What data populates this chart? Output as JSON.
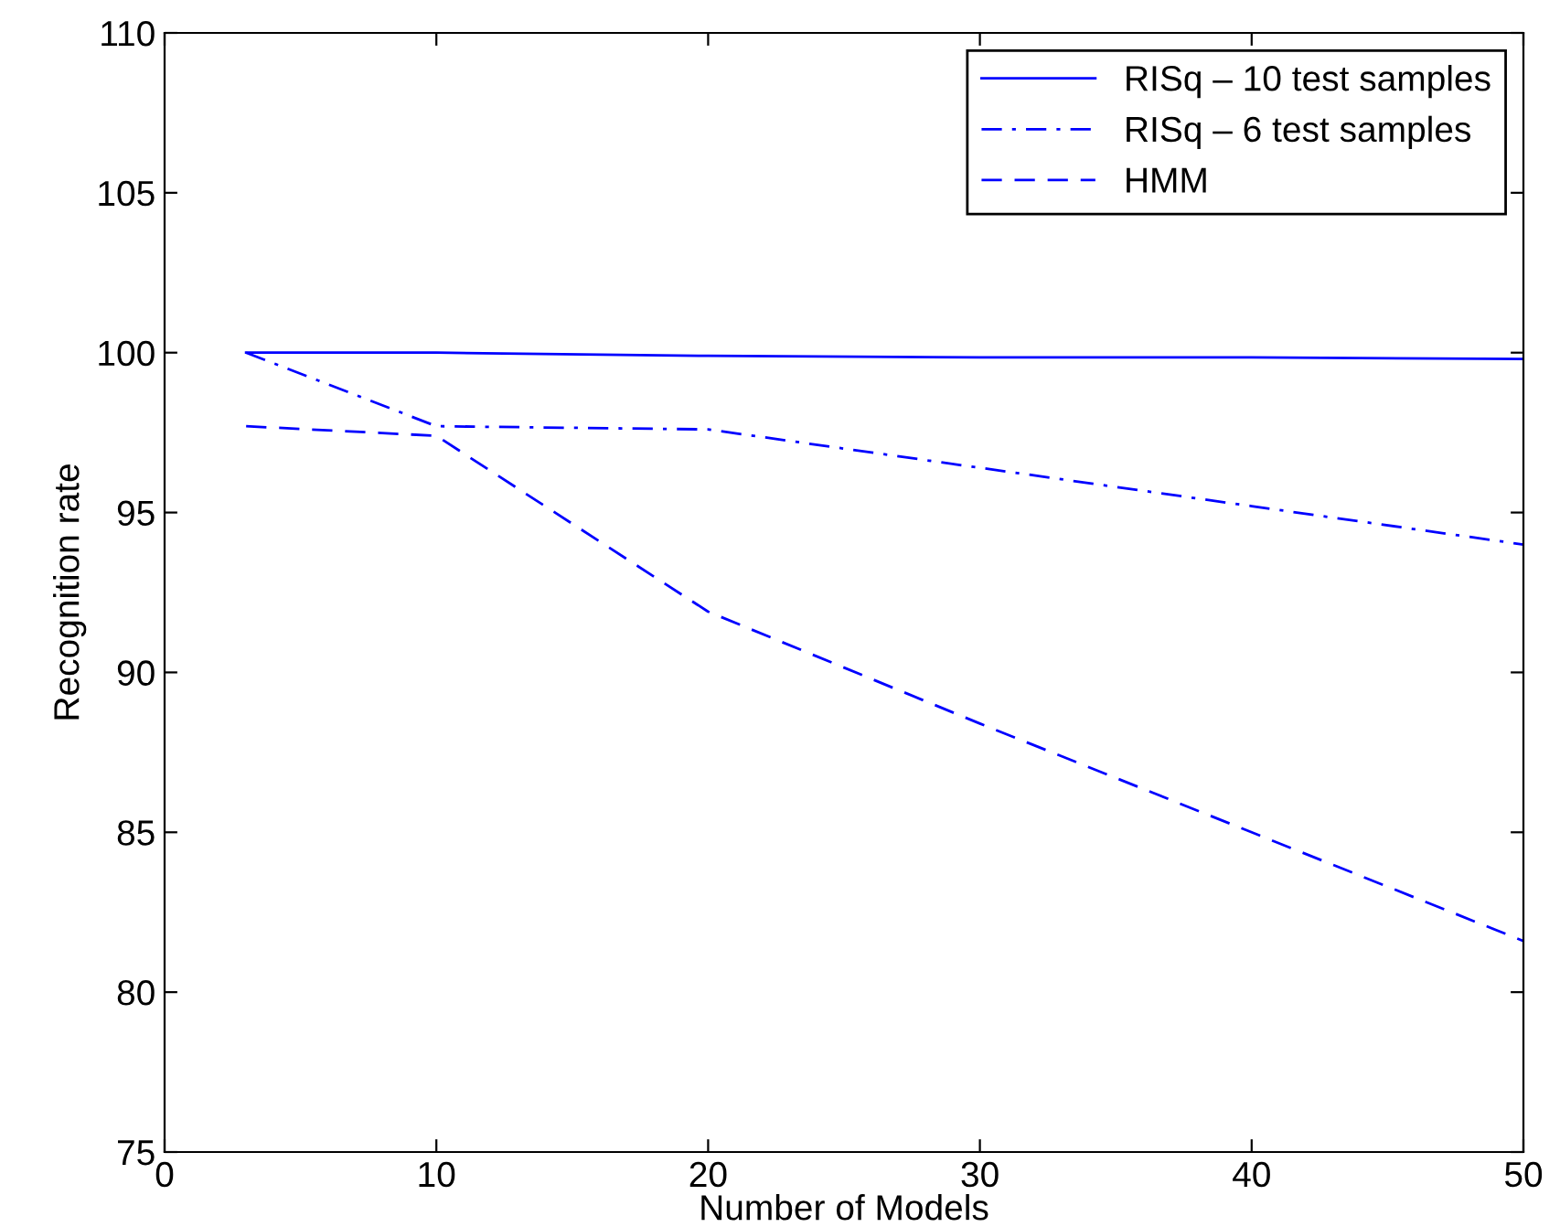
{
  "chart_data": {
    "type": "line",
    "xlabel": "Number of Models",
    "ylabel": "Recognition rate",
    "x": [
      3,
      10,
      20,
      30,
      40,
      50
    ],
    "series": [
      {
        "name": "RISq – 10 test samples",
        "color": "#0000ff",
        "line_style": "solid",
        "values": [
          100,
          100,
          99.9,
          99.85,
          99.85,
          99.8
        ]
      },
      {
        "name": "RISq – 6 test samples",
        "color": "#0000ff",
        "line_style": "dashdot",
        "values": [
          100,
          97.7,
          97.6,
          96.4,
          95.2,
          94.0
        ]
      },
      {
        "name": "HMM",
        "color": "#0000ff",
        "line_style": "dashed",
        "values": [
          97.7,
          97.4,
          91.9,
          88.4,
          85.0,
          81.6
        ]
      }
    ],
    "xlim": [
      0,
      50
    ],
    "xticks": [
      0,
      10,
      20,
      30,
      40,
      50
    ],
    "ylim": [
      75,
      110
    ],
    "yticks": [
      75,
      80,
      85,
      90,
      95,
      100,
      105,
      110
    ],
    "grid": false,
    "legend": "top right",
    "marker": "none"
  }
}
